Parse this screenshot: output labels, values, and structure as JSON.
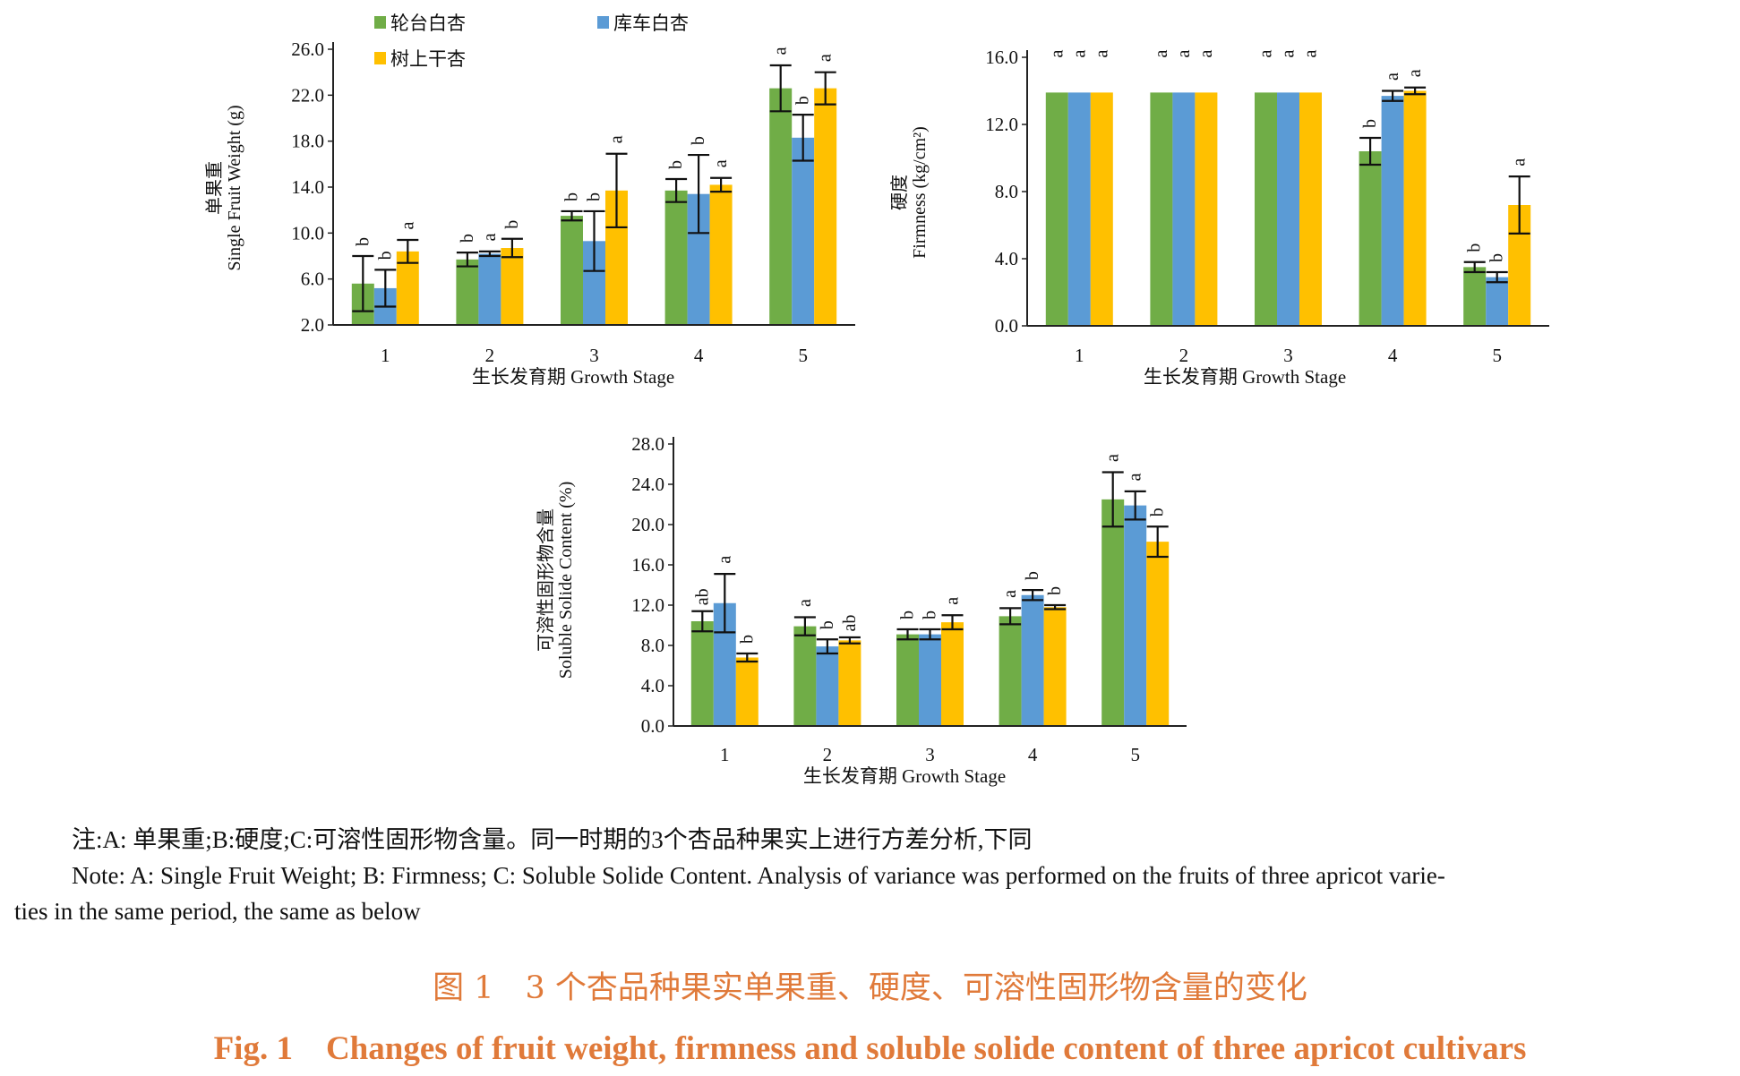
{
  "colors": {
    "series1": "#70ad47",
    "series2": "#5b9bd5",
    "series3": "#ffc000",
    "caption": "#e07a3a"
  },
  "legend": [
    "轮台白杏",
    "库车白杏",
    "树上干杏"
  ],
  "note": {
    "cn": "注:A: 单果重;B:硬度;C:可溶性固形物含量。同一时期的3个杏品种果实上进行方差分析,下同",
    "en_line1": "Note: A: Single Fruit Weight; B: Firmness; C: Soluble Solide Content. Analysis of variance was performed on the fruits of three apricot varie-",
    "en_line2": "ties in the same period, the same as below"
  },
  "caption": {
    "cn": "图 1　3 个杏品种果实单果重、硬度、可溶性固形物含量的变化",
    "en": "Fig. 1　Changes of fruit weight, firmness and soluble solide content of three apricot cultivars"
  },
  "chart_data": [
    {
      "type": "bar",
      "panel": "A",
      "title": "",
      "xlabel": "生长发育期 Growth Stage",
      "ylabel_cn": "单果重",
      "ylabel_en": "Single Fruit Weight (g)",
      "categories": [
        "1",
        "2",
        "3",
        "4",
        "5"
      ],
      "ylim": [
        2.0,
        26.0
      ],
      "yticks": [
        "2.0",
        "6.0",
        "10.0",
        "14.0",
        "18.0",
        "22.0",
        "26.0"
      ],
      "series": [
        {
          "name": "轮台白杏",
          "values": [
            5.6,
            7.7,
            11.5,
            13.7,
            22.6
          ],
          "errors": [
            2.4,
            0.6,
            0.4,
            1.0,
            2.0
          ],
          "labels": [
            "b",
            "b",
            "b",
            "b",
            "a"
          ]
        },
        {
          "name": "库车白杏",
          "values": [
            5.2,
            8.2,
            9.3,
            13.4,
            18.3
          ],
          "errors": [
            1.6,
            0.2,
            2.6,
            3.4,
            2.0
          ],
          "labels": [
            "b",
            "a",
            "b",
            "b",
            "b"
          ]
        },
        {
          "name": "树上干杏",
          "values": [
            8.4,
            8.7,
            13.7,
            14.2,
            22.6
          ],
          "errors": [
            1.0,
            0.8,
            3.2,
            0.6,
            1.4
          ],
          "labels": [
            "a",
            "b",
            "a",
            "a",
            "a"
          ]
        }
      ]
    },
    {
      "type": "bar",
      "panel": "B",
      "title": "",
      "xlabel": "生长发育期 Growth Stage",
      "ylabel_cn": "硬度",
      "ylabel_en": "Firmness (kg/cm²)",
      "categories": [
        "1",
        "2",
        "3",
        "4",
        "5"
      ],
      "ylim": [
        0.0,
        16.0
      ],
      "yticks": [
        "0.0",
        "4.0",
        "8.0",
        "12.0",
        "16.0"
      ],
      "series": [
        {
          "name": "轮台白杏",
          "values": [
            13.9,
            13.9,
            13.9,
            10.4,
            3.5
          ],
          "errors": [
            0,
            0,
            0,
            0.8,
            0.3
          ],
          "labels": [
            "a",
            "a",
            "a",
            "b",
            "b"
          ]
        },
        {
          "name": "库车白杏",
          "values": [
            13.9,
            13.9,
            13.9,
            13.7,
            2.9
          ],
          "errors": [
            0,
            0,
            0,
            0.3,
            0.3
          ],
          "labels": [
            "a",
            "a",
            "a",
            "a",
            "b"
          ]
        },
        {
          "name": "树上干杏",
          "values": [
            13.9,
            13.9,
            13.9,
            14.0,
            7.2
          ],
          "errors": [
            0,
            0,
            0,
            0.2,
            1.7
          ],
          "labels": [
            "a",
            "a",
            "a",
            "a",
            "a"
          ]
        }
      ]
    },
    {
      "type": "bar",
      "panel": "C",
      "title": "",
      "xlabel": "生长发育期 Growth Stage",
      "ylabel_cn": "可溶性固形物含量",
      "ylabel_en": "Soluble Solide Content (%)",
      "categories": [
        "1",
        "2",
        "3",
        "4",
        "5"
      ],
      "ylim": [
        0.0,
        28.0
      ],
      "yticks": [
        "0.0",
        "4.0",
        "8.0",
        "12.0",
        "16.0",
        "20.0",
        "24.0",
        "28.0"
      ],
      "series": [
        {
          "name": "轮台白杏",
          "values": [
            10.4,
            9.9,
            9.1,
            10.9,
            22.5
          ],
          "errors": [
            1.0,
            0.9,
            0.5,
            0.8,
            2.7
          ],
          "labels": [
            "ab",
            "a",
            "b",
            "a",
            "a"
          ]
        },
        {
          "name": "库车白杏",
          "values": [
            12.2,
            7.9,
            9.1,
            13.0,
            21.9
          ],
          "errors": [
            2.9,
            0.7,
            0.5,
            0.5,
            1.4
          ],
          "labels": [
            "a",
            "b",
            "b",
            "b",
            "a"
          ]
        },
        {
          "name": "树上干杏",
          "values": [
            6.8,
            8.5,
            10.3,
            11.8,
            18.3
          ],
          "errors": [
            0.4,
            0.3,
            0.7,
            0.2,
            1.5
          ],
          "labels": [
            "b",
            "ab",
            "a",
            "b",
            "b"
          ]
        }
      ]
    }
  ]
}
